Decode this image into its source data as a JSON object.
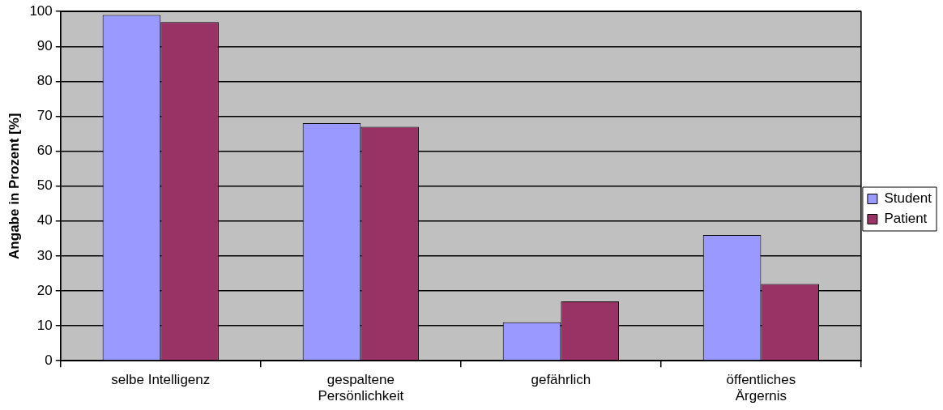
{
  "chart_data": {
    "type": "bar",
    "ylabel": "Angabe in Prozent [%]",
    "categories": [
      "selbe Intelligenz",
      "gespaltene Persönlichkeit",
      "gefährlich",
      "öffentliches Ärgernis"
    ],
    "series": [
      {
        "name": "Student",
        "color": "#9999ff",
        "values": [
          99,
          68,
          11,
          36
        ]
      },
      {
        "name": "Patient",
        "color": "#993366",
        "values": [
          97,
          67,
          17,
          22
        ]
      }
    ],
    "ylim": [
      0,
      100
    ],
    "yticks": [
      0,
      10,
      20,
      30,
      40,
      50,
      60,
      70,
      80,
      90,
      100
    ],
    "grid": "y",
    "legend": "right"
  }
}
